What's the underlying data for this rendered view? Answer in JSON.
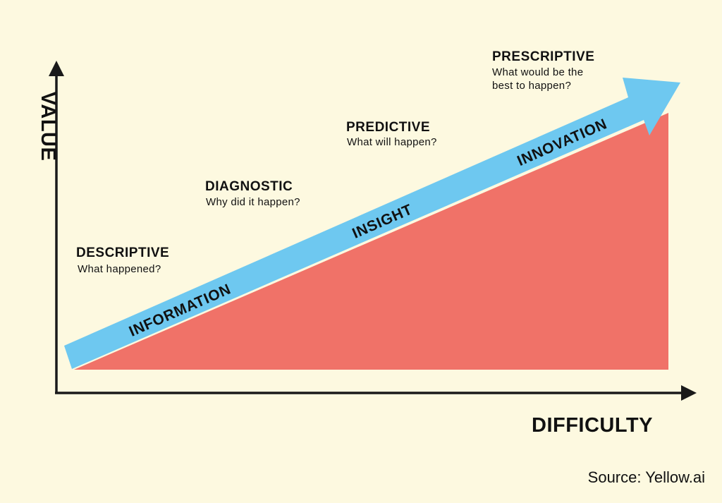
{
  "axes": {
    "y_label": "VALUE",
    "x_label": "DIFFICULTY"
  },
  "stages": [
    {
      "title": "DESCRIPTIVE",
      "question": "What happened?"
    },
    {
      "title": "DIAGNOSTIC",
      "question": "Why did it happen?"
    },
    {
      "title": "PREDICTIVE",
      "question": "What will happen?"
    },
    {
      "title": "PRESCRIPTIVE",
      "question_line1": "What would be the",
      "question_line2": "best to happen?"
    }
  ],
  "arrow_labels": [
    "INFORMATION",
    "INSIGHT",
    "INNOVATION"
  ],
  "source": "Source: Yellow.ai",
  "colors": {
    "background": "#fdf9e0",
    "triangle": "#f07268",
    "arrow": "#6ec8f0",
    "text": "#111111"
  }
}
